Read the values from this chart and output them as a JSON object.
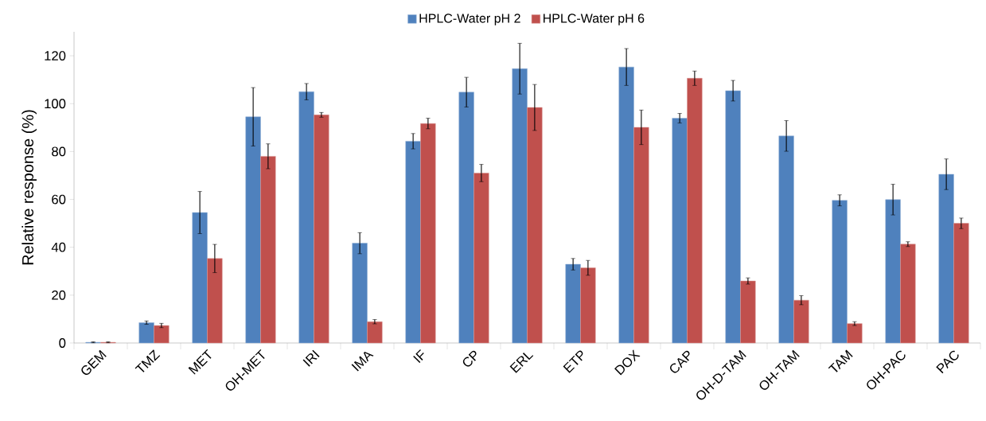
{
  "chart_data": {
    "type": "bar",
    "ylabel": "Relative response (%)",
    "categories": [
      "GEM",
      "TMZ",
      "MET",
      "OH-MET",
      "IRI",
      "IMA",
      "IF",
      "CP",
      "ERL",
      "ETP",
      "DOX",
      "CAP",
      "OH-D-TAM",
      "OH-TAM",
      "TAM",
      "OH-PAC",
      "PAC"
    ],
    "series": [
      {
        "name": "HPLC-Water pH 2",
        "color": "#4f81bd",
        "values": [
          0.3,
          8.5,
          54.5,
          94.5,
          105,
          41.7,
          84.3,
          104.8,
          114.6,
          32.9,
          115.3,
          93.9,
          105.4,
          86.5,
          59.6,
          59.9,
          70.5
        ],
        "errors": [
          0.2,
          0.7,
          8.8,
          12.2,
          3.4,
          4.4,
          3.2,
          6.2,
          10.6,
          2.4,
          7.7,
          2.0,
          4.3,
          6.4,
          2.3,
          6.4,
          6.4
        ]
      },
      {
        "name": "HPLC-Water pH 6",
        "color": "#c0504d",
        "values": [
          0.3,
          7.3,
          35.3,
          78.0,
          95.3,
          8.9,
          91.7,
          71.0,
          98.4,
          31.4,
          90.1,
          110.6,
          25.9,
          17.9,
          8.1,
          41.3,
          50.0
        ],
        "errors": [
          0.2,
          0.9,
          5.9,
          5.2,
          1.0,
          0.9,
          2.2,
          3.6,
          9.6,
          3.1,
          7.2,
          3.0,
          1.3,
          1.9,
          0.8,
          1.0,
          2.2
        ]
      }
    ],
    "ylim": [
      0,
      130
    ],
    "yticks": [
      0,
      20,
      40,
      60,
      80,
      100,
      120
    ],
    "legend": "top",
    "grid": false
  }
}
